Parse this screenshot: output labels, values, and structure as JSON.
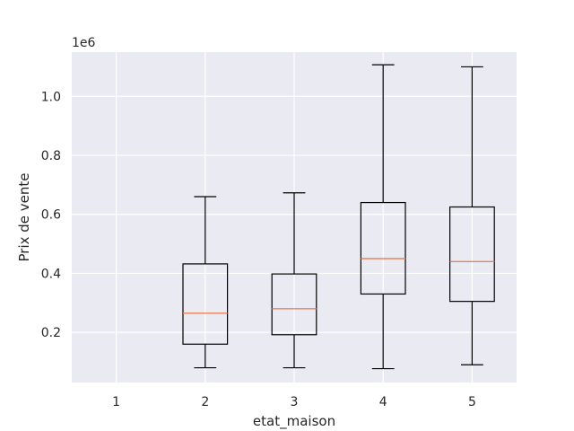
{
  "chart_data": {
    "type": "box",
    "title": "",
    "xlabel": "etat_maison",
    "ylabel": "Prix de vente",
    "y_offset_label": "1e6",
    "y_scale": 1000000,
    "ylim": [
      30000,
      1150000
    ],
    "yticks": [
      0.2,
      0.4,
      0.6,
      0.8,
      1.0
    ],
    "ytick_labels": [
      "0.2",
      "0.4",
      "0.6",
      "0.8",
      "1.0"
    ],
    "categories": [
      "1",
      "2",
      "3",
      "4",
      "5"
    ],
    "grid": true,
    "boxes": [
      {
        "category": "1",
        "empty": true
      },
      {
        "category": "2",
        "whislo": 80000,
        "q1": 160000,
        "med": 265000,
        "q3": 432000,
        "whishi": 660000
      },
      {
        "category": "3",
        "whislo": 80000,
        "q1": 192000,
        "med": 280000,
        "q3": 398000,
        "whishi": 673000
      },
      {
        "category": "4",
        "whislo": 77000,
        "q1": 330000,
        "med": 450000,
        "q3": 640000,
        "whishi": 1107000
      },
      {
        "category": "5",
        "whislo": 90000,
        "q1": 305000,
        "med": 440000,
        "q3": 625000,
        "whishi": 1100000
      }
    ],
    "colors": {
      "background": "#eaeaf2",
      "grid": "#ffffff",
      "box": "#000000",
      "median": "#e8825b"
    }
  }
}
